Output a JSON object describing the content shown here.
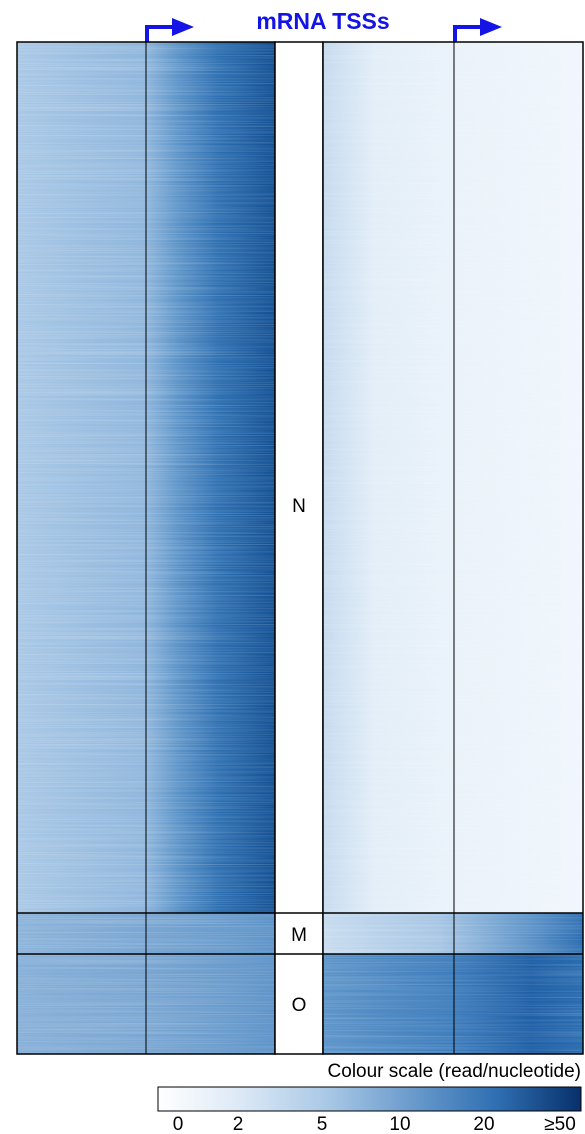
{
  "chart_data": {
    "type": "heatmap",
    "title": "mRNA TSSs",
    "clusters": [
      {
        "label": "N"
      },
      {
        "label": "M"
      },
      {
        "label": "O"
      }
    ],
    "colour_scale": {
      "title": "Colour scale (read/nucleotide)",
      "tick_labels": [
        "0",
        "2",
        "5",
        "10",
        "20",
        "≥50"
      ],
      "low_color": "#ffffff",
      "high_color": "#08306b"
    },
    "signal_colors": {
      "n_outer_left": "#8fb6dc",
      "n_inner_left": "#1f5fa6",
      "n_inner_right": "#e6f0fa",
      "n_outer_right": "#f0f6fc",
      "m_left": "#7aa6d2",
      "m_right": "#6a9bcc",
      "o_left": "#6d9dcd",
      "o_right": "#2f6fb2"
    }
  }
}
